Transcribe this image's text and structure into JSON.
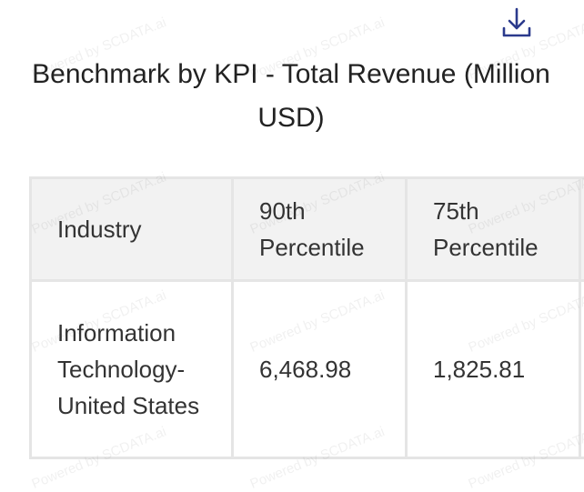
{
  "header": {
    "title": "Benchmark by KPI - Total Revenue (Million USD)"
  },
  "watermark": "Powered by SCDATA.ai",
  "table": {
    "columns": [
      "Industry",
      "90th Percentile",
      "75th Percentile"
    ],
    "rows": [
      [
        "Information Technology-United States",
        "6,468.98",
        "1,825.81"
      ]
    ]
  }
}
